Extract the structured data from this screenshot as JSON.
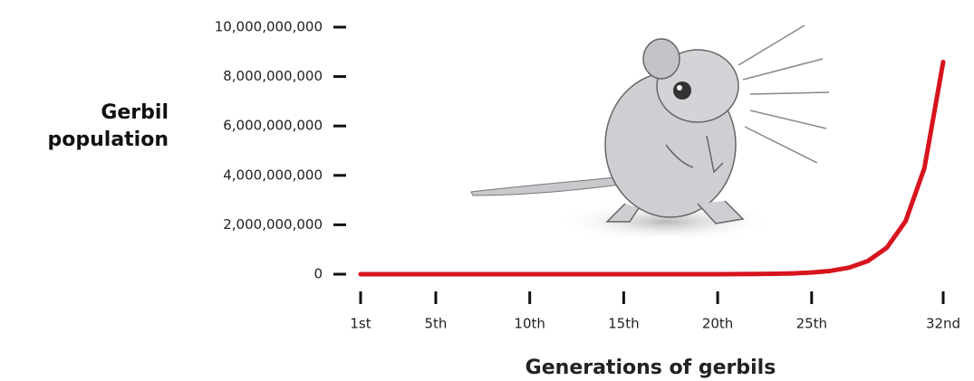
{
  "chart_data": {
    "type": "line",
    "y_label": "Gerbil population",
    "x_label": "Generations of gerbils",
    "x": [
      1,
      2,
      3,
      4,
      5,
      6,
      7,
      8,
      9,
      10,
      11,
      12,
      13,
      14,
      15,
      16,
      17,
      18,
      19,
      20,
      21,
      22,
      23,
      24,
      25,
      26,
      27,
      28,
      29,
      30,
      31,
      32
    ],
    "values": [
      4,
      8,
      16,
      32,
      64,
      128,
      256,
      512,
      1024,
      2048,
      4096,
      8192,
      16384,
      32768,
      65536,
      131072,
      262144,
      524288,
      1048576,
      2097152,
      4194304,
      8388608,
      16777216,
      33554432,
      67108864,
      134217728,
      268435456,
      536870912,
      1073741824,
      2147483648,
      4294967296,
      8589934592
    ],
    "color": "#d7141e",
    "xlim": [
      1,
      32
    ],
    "xticks": [
      {
        "value": 1,
        "label": "1st"
      },
      {
        "value": 5,
        "label": "5th"
      },
      {
        "value": 10,
        "label": "10th"
      },
      {
        "value": 15,
        "label": "15th"
      },
      {
        "value": 20,
        "label": "20th"
      },
      {
        "value": 25,
        "label": "25th"
      },
      {
        "value": 32,
        "label": "32nd"
      }
    ],
    "ylim": [
      0,
      10000000000
    ],
    "yticks": [
      0,
      {
        "value": 2000000000,
        "label": "2,000,000,000"
      },
      {
        "value": 4000000000,
        "label": "4,000,000,000"
      },
      {
        "value": 6000000000,
        "label": "6,000,000,000"
      },
      {
        "value": 8000000000,
        "label": "8,000,000,000"
      },
      {
        "value": 10000000000,
        "label": "10,000,000,000"
      }
    ]
  }
}
